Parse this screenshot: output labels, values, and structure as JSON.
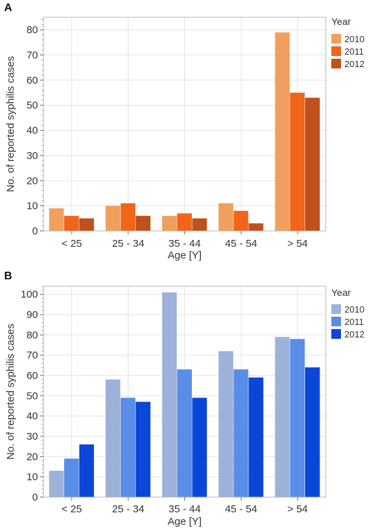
{
  "chart_data": [
    {
      "panel": "A",
      "type": "bar",
      "xlabel": "Age [Y]",
      "ylabel": "No. of reported syphilis cases",
      "ylim": [
        0,
        85
      ],
      "yticks": [
        0,
        10,
        20,
        30,
        40,
        50,
        60,
        70,
        80
      ],
      "grid": true,
      "legend_title": "Year",
      "legend_position": "right",
      "categories": [
        "< 25",
        "25 - 34",
        "35 - 44",
        "45 - 54",
        "> 54"
      ],
      "series": [
        {
          "name": "2010",
          "color": "#f0a05c",
          "values": [
            9,
            10,
            6,
            11,
            79
          ]
        },
        {
          "name": "2011",
          "color": "#f0651a",
          "values": [
            6,
            11,
            7,
            8,
            55
          ]
        },
        {
          "name": "2012",
          "color": "#c0501c",
          "values": [
            5,
            6,
            5,
            3,
            53
          ]
        }
      ]
    },
    {
      "panel": "B",
      "type": "bar",
      "xlabel": "Age [Y]",
      "ylabel": "No. of reported syphilis cases",
      "ylim": [
        0,
        104
      ],
      "yticks": [
        0,
        10,
        20,
        30,
        40,
        50,
        60,
        70,
        80,
        90,
        100
      ],
      "grid": true,
      "legend_title": "Year",
      "legend_position": "right",
      "categories": [
        "< 25",
        "25 - 34",
        "35 - 44",
        "45 - 54",
        "> 54"
      ],
      "series": [
        {
          "name": "2010",
          "color": "#9db2d9",
          "values": [
            13,
            58,
            101,
            72,
            79
          ]
        },
        {
          "name": "2011",
          "color": "#5a8de8",
          "values": [
            19,
            49,
            63,
            63,
            78
          ]
        },
        {
          "name": "2012",
          "color": "#0b47d6",
          "values": [
            26,
            47,
            49,
            59,
            64
          ]
        }
      ]
    }
  ]
}
